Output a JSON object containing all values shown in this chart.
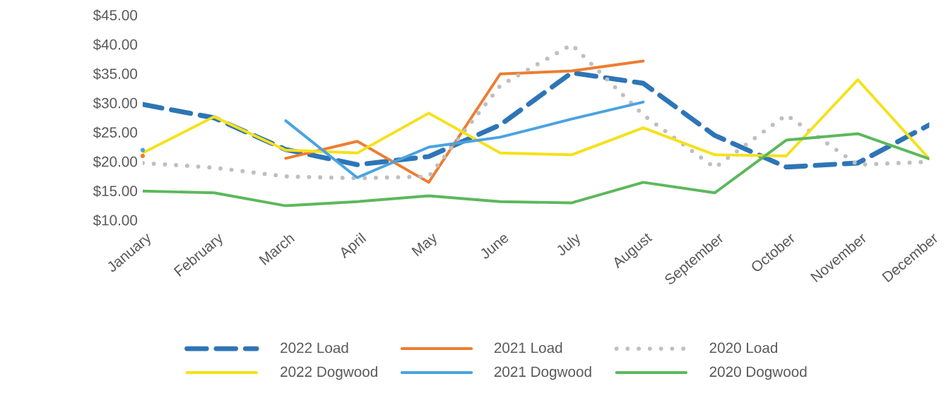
{
  "chart_data": {
    "type": "line",
    "categories": [
      "January",
      "February",
      "March",
      "April",
      "May",
      "June",
      "July",
      "August",
      "September",
      "October",
      "November",
      "December"
    ],
    "ylim": [
      10,
      45
    ],
    "yticks": [
      {
        "value": 10,
        "label": "$10.00"
      },
      {
        "value": 15,
        "label": "$15.00"
      },
      {
        "value": 20,
        "label": "$20.00"
      },
      {
        "value": 25,
        "label": "$25.00"
      },
      {
        "value": 30,
        "label": "$30.00"
      },
      {
        "value": 35,
        "label": "$35.00"
      },
      {
        "value": 40,
        "label": "$40.00"
      },
      {
        "value": 45,
        "label": "$45.00"
      }
    ],
    "grid": false,
    "legend": "bottom",
    "marker": "none",
    "series": [
      {
        "name": "2022 Load",
        "color": "#2e75b6",
        "line_style": "dashed",
        "values": [
          29.8,
          27.5,
          22.1,
          19.5,
          20.9,
          26.3,
          35.2,
          33.4,
          24.5,
          19.1,
          19.8,
          26.3
        ]
      },
      {
        "name": "2021 Load",
        "color": "#ed7d31",
        "line_style": "solid",
        "values": [
          21,
          null,
          20.6,
          23.5,
          16.5,
          35,
          35.5,
          37.2,
          null,
          null,
          null,
          null
        ]
      },
      {
        "name": "2020 Load",
        "color": "#bfbfbf",
        "line_style": "dotted",
        "values": [
          19.8,
          19,
          17.5,
          17.2,
          17.5,
          33,
          40,
          28,
          19,
          28,
          19.5,
          20
        ]
      },
      {
        "name": "2022 Dogwood",
        "color": "#f5e11a",
        "line_style": "solid",
        "values": [
          21.5,
          27.7,
          22,
          21.5,
          28.3,
          21.5,
          21.2,
          25.8,
          21.2,
          21,
          34,
          20.5
        ]
      },
      {
        "name": "2021 Dogwood",
        "color": "#4aa3df",
        "line_style": "solid",
        "values": [
          22,
          null,
          27,
          17.3,
          22.5,
          24.2,
          27.3,
          30.2,
          null,
          null,
          null,
          null
        ]
      },
      {
        "name": "2020 Dogwood",
        "color": "#5cb85c",
        "line_style": "solid",
        "values": [
          15,
          14.7,
          12.5,
          13.2,
          14.2,
          13.2,
          13,
          16.5,
          14.7,
          23.7,
          24.8,
          20.5
        ]
      }
    ]
  }
}
